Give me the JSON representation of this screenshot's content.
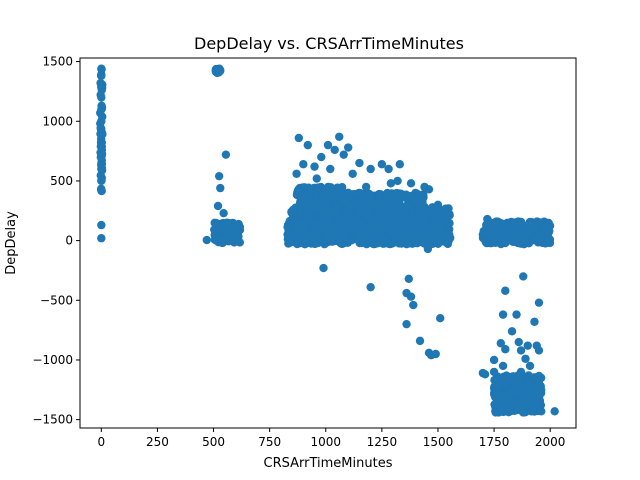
{
  "chart_data": {
    "type": "scatter",
    "title": "DepDelay vs. CRSArrTimeMinutes",
    "xlabel": "CRSArrTimeMinutes",
    "ylabel": "DepDelay",
    "xlim": [
      -95,
      2115
    ],
    "ylim": [
      -1570,
      1530
    ],
    "xticks": [
      0,
      250,
      500,
      750,
      1000,
      1250,
      1500,
      1750,
      2000
    ],
    "yticks": [
      -1500,
      -1000,
      -500,
      0,
      500,
      1000,
      1500
    ],
    "grid": false,
    "legend": "none",
    "marker_color": "#1f77b4",
    "series": [
      {
        "points": [
          [
            0,
            1440
          ],
          [
            0,
            1380
          ],
          [
            0,
            1300
          ],
          [
            0,
            1200
          ],
          [
            0,
            1100
          ],
          [
            0,
            1000
          ],
          [
            0,
            900
          ],
          [
            0,
            800
          ],
          [
            0,
            700
          ],
          [
            0,
            600
          ],
          [
            0,
            500
          ],
          [
            0,
            420
          ],
          [
            0,
            130
          ],
          [
            0,
            20
          ],
          [
            520,
            1430
          ],
          [
            510,
            1430
          ],
          [
            525,
            1425
          ],
          [
            555,
            720
          ],
          [
            525,
            540
          ],
          [
            530,
            440
          ],
          [
            520,
            290
          ],
          [
            545,
            230
          ],
          [
            560,
            150
          ],
          [
            555,
            80
          ],
          [
            470,
            5
          ],
          [
            610,
            0
          ],
          [
            540,
            20
          ],
          [
            575,
            10
          ],
          [
            880,
            860
          ],
          [
            920,
            800
          ],
          [
            900,
            640
          ],
          [
            980,
            700
          ],
          [
            1060,
            870
          ],
          [
            1010,
            800
          ],
          [
            1040,
            760
          ],
          [
            1100,
            780
          ],
          [
            1150,
            650
          ],
          [
            1200,
            600
          ],
          [
            1180,
            450
          ],
          [
            1280,
            600
          ],
          [
            1250,
            640
          ],
          [
            1290,
            480
          ],
          [
            1320,
            500
          ],
          [
            1330,
            640
          ],
          [
            1380,
            480
          ],
          [
            1440,
            450
          ],
          [
            1460,
            430
          ],
          [
            1080,
            720
          ],
          [
            950,
            620
          ],
          [
            1120,
            560
          ],
          [
            1020,
            600
          ],
          [
            870,
            560
          ],
          [
            960,
            520
          ],
          [
            1200,
            380
          ],
          [
            1300,
            380
          ],
          [
            1400,
            350
          ],
          [
            1500,
            300
          ],
          [
            900,
            300
          ],
          [
            1000,
            420
          ],
          [
            1100,
            400
          ],
          [
            1050,
            300
          ],
          [
            950,
            250
          ],
          [
            1150,
            250
          ],
          [
            1250,
            200
          ],
          [
            1350,
            200
          ],
          [
            1450,
            150
          ],
          [
            1550,
            50
          ],
          [
            830,
            50
          ],
          [
            850,
            20
          ],
          [
            1000,
            10
          ],
          [
            1200,
            10
          ],
          [
            1400,
            10
          ],
          [
            1540,
            0
          ],
          [
            1500,
            -20
          ],
          [
            1455,
            -70
          ],
          [
            990,
            -230
          ],
          [
            1200,
            -390
          ],
          [
            1370,
            -320
          ],
          [
            1360,
            -440
          ],
          [
            1380,
            -470
          ],
          [
            1390,
            -540
          ],
          [
            1360,
            -700
          ],
          [
            1420,
            -840
          ],
          [
            1460,
            -940
          ],
          [
            1470,
            -960
          ],
          [
            1490,
            -950
          ],
          [
            1510,
            -650
          ],
          [
            1700,
            50
          ],
          [
            1720,
            180
          ],
          [
            1760,
            160
          ],
          [
            1800,
            120
          ],
          [
            1840,
            100
          ],
          [
            1880,
            60
          ],
          [
            1900,
            40
          ],
          [
            1930,
            30
          ],
          [
            1960,
            20
          ],
          [
            1990,
            10
          ],
          [
            1750,
            20
          ],
          [
            1850,
            0
          ],
          [
            1800,
            -20
          ],
          [
            1880,
            -300
          ],
          [
            1800,
            -420
          ],
          [
            1950,
            -520
          ],
          [
            1790,
            -620
          ],
          [
            1850,
            -620
          ],
          [
            1830,
            -760
          ],
          [
            1930,
            -680
          ],
          [
            1780,
            -860
          ],
          [
            1800,
            -910
          ],
          [
            1860,
            -850
          ],
          [
            1900,
            -880
          ],
          [
            1750,
            -1000
          ],
          [
            1750,
            -1100
          ],
          [
            1790,
            -1050
          ],
          [
            1870,
            -920
          ],
          [
            1890,
            -990
          ],
          [
            1940,
            -880
          ],
          [
            1950,
            -920
          ],
          [
            1700,
            -1110
          ],
          [
            1710,
            -1120
          ],
          [
            1760,
            -1180
          ],
          [
            1800,
            -1200
          ],
          [
            1820,
            -1250
          ],
          [
            1850,
            -1280
          ],
          [
            1880,
            -1300
          ],
          [
            1900,
            -1350
          ],
          [
            1920,
            -1380
          ],
          [
            1940,
            -1400
          ],
          [
            1960,
            -1430
          ],
          [
            1880,
            -1440
          ],
          [
            1850,
            -1400
          ],
          [
            1800,
            -1350
          ],
          [
            1780,
            -1300
          ],
          [
            1900,
            -1200
          ],
          [
            1930,
            -1150
          ],
          [
            1960,
            -1250
          ],
          [
            2020,
            -1430
          ],
          [
            1760,
            -1260
          ],
          [
            1830,
            -1170
          ],
          [
            1870,
            -1100
          ],
          [
            1910,
            -1050
          ],
          [
            1950,
            -1180
          ],
          [
            1940,
            -1320
          ],
          [
            1820,
            -1330
          ],
          [
            1870,
            -1380
          ],
          [
            1770,
            -1220
          ]
        ],
        "dense_clusters": [
          {
            "x_range": [
              -5,
              5
            ],
            "y_range": [
              410,
              1440
            ]
          },
          {
            "x_range": [
              510,
              530
            ],
            "y_range": [
              1405,
              1440
            ]
          },
          {
            "x_range": [
              500,
              620
            ],
            "y_range": [
              -20,
              150
            ]
          },
          {
            "x_range": [
              830,
              1555
            ],
            "y_range": [
              -30,
              280
            ]
          },
          {
            "x_range": [
              870,
              1080
            ],
            "y_range": [
              200,
              450
            ]
          },
          {
            "x_range": [
              1080,
              1450
            ],
            "y_range": [
              180,
              400
            ]
          },
          {
            "x_range": [
              1700,
              2000
            ],
            "y_range": [
              -30,
              160
            ]
          },
          {
            "x_range": [
              1750,
              1960
            ],
            "y_range": [
              -1440,
              -1130
            ]
          }
        ]
      }
    ]
  }
}
